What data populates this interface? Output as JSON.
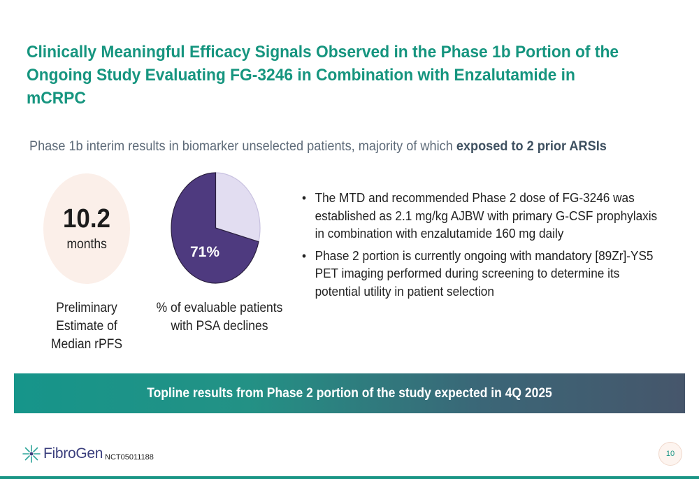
{
  "title": {
    "line1": "Clinically Meaningful Efficacy Signals Observed in the Phase 1b Portion of the",
    "line2": "Ongoing Study Evaluating FG-3246 in Combination with Enzalutamide in mCRPC"
  },
  "subtitle": {
    "text": "Phase 1b interim results in biomarker unselected patients, majority of which ",
    "bold": "exposed to 2 prior ARSIs"
  },
  "stat": {
    "value": "10.2",
    "unit": "months",
    "label_lines": [
      "Preliminary",
      "Estimate of",
      "Median rPFS"
    ]
  },
  "chart_data": {
    "type": "pie",
    "values": [
      71,
      29
    ],
    "data_label": "71%",
    "colors": [
      "#4e3a7f",
      "#e2ddf1"
    ],
    "caption_lines": [
      "% of evaluable  patients",
      "with PSA declines"
    ]
  },
  "bullets": [
    {
      "glyph": "•",
      "text": "The MTD and recommended Phase 2 dose of FG-3246 was established as 2.1 mg/kg AJBW with primary G-CSF prophylaxis in combination with enzalutamide 160 mg daily"
    },
    {
      "glyph": "•",
      "text": "Phase 2 portion is currently ongoing with mandatory [89Zr]-YS5 PET imaging performed during screening to determine its potential utility in patient selection"
    }
  ],
  "banner": {
    "text": "Topline results from Phase 2 portion of the study expected in 4Q 2025"
  },
  "footer": {
    "logo_text": "FibroGen",
    "logo_icon": "fibrogen-starburst-icon",
    "nct": "NCT05011188",
    "page_number": "10"
  },
  "colors": {
    "accent": "#16957f",
    "pie_main": "#4e3a7f",
    "pie_rest": "#e2ddf1",
    "stat_circle": "#fbefe9",
    "banner_start": "#16958a",
    "banner_end": "#46566b"
  }
}
